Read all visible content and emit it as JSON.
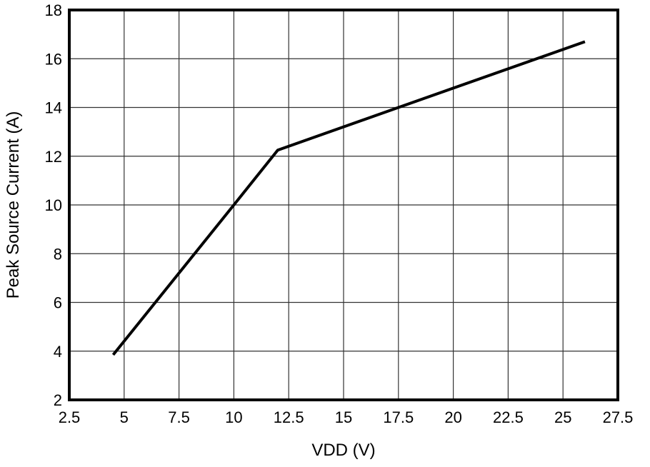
{
  "chart_data": {
    "type": "line",
    "title": "",
    "xlabel": "VDD (V)",
    "ylabel": "Peak Source Current (A)",
    "xlim": [
      2.5,
      27.5
    ],
    "ylim": [
      2,
      18
    ],
    "xticks": [
      2.5,
      5,
      7.5,
      10,
      12.5,
      15,
      17.5,
      20,
      22.5,
      25,
      27.5
    ],
    "xtick_labels": [
      "2.5",
      "5",
      "7.5",
      "10",
      "12.5",
      "15",
      "17.5",
      "20",
      "22.5",
      "25",
      "27.5"
    ],
    "yticks": [
      2,
      4,
      6,
      8,
      10,
      12,
      14,
      16,
      18
    ],
    "ytick_labels": [
      "2",
      "4",
      "6",
      "8",
      "10",
      "12",
      "14",
      "16",
      "18"
    ],
    "grid": true,
    "line_color": "#000000",
    "series": [
      {
        "x": [
          4.5,
          10,
          12,
          17.5,
          26
        ],
        "y": [
          3.85,
          10,
          12.25,
          14,
          16.7
        ]
      }
    ]
  }
}
